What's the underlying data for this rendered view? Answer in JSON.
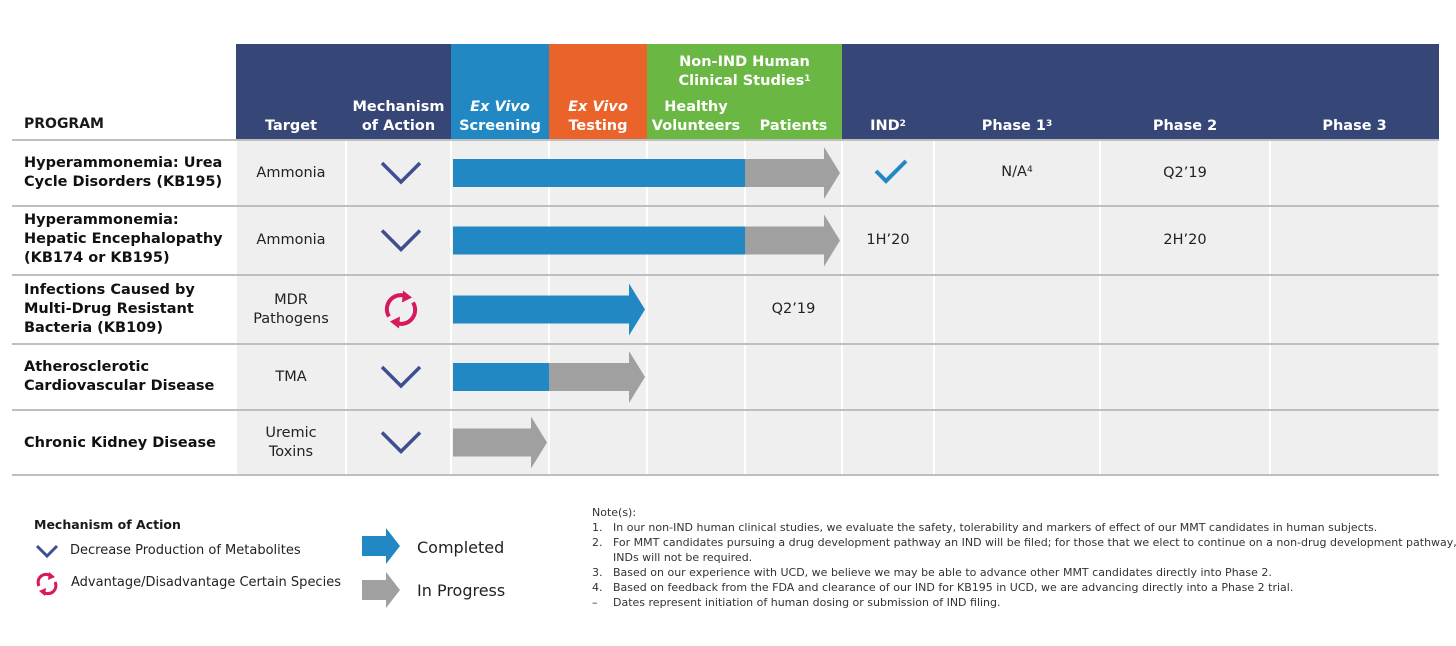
{
  "header": {
    "program": "PROGRAM",
    "target": "Target",
    "mechanism": [
      "Mechanism",
      "of Action"
    ],
    "ex_vivo_screening": [
      "Ex Vivo",
      "Screening"
    ],
    "ex_vivo_testing": [
      "Ex Vivo",
      "Testing"
    ],
    "non_ind": [
      "Non-IND Human",
      "Clinical Studies"
    ],
    "non_ind_sup": "1",
    "healthy": [
      "Healthy",
      "Volunteers"
    ],
    "patients": "Patients",
    "ind": "IND",
    "ind_sup": "2",
    "phase1": "Phase 1",
    "phase1_sup": "3",
    "phase2": "Phase 2",
    "phase3": "Phase 3"
  },
  "chart_data": {
    "type": "table",
    "stages": [
      "Ex Vivo Screening",
      "Ex Vivo Testing",
      "Healthy Volunteers",
      "Patients"
    ],
    "rows": [
      {
        "program": [
          "Hyperammonemia: Urea",
          "Cycle Disorders (KB195)"
        ],
        "target": [
          "Ammonia"
        ],
        "mechanism": "decrease",
        "completed_through": 3,
        "in_progress_through": 4,
        "ind": "check",
        "phase1": "N/A",
        "phase1_sup": "4",
        "phase2": "Q2’19"
      },
      {
        "program": [
          "Hyperammonemia:",
          "Hepatic Encephalopathy",
          "(KB174 or KB195)"
        ],
        "target": [
          "Ammonia"
        ],
        "mechanism": "decrease",
        "completed_through": 3,
        "in_progress_through": 4,
        "ind": "1H’20",
        "phase2": "2H’20"
      },
      {
        "program": [
          "Infections Caused by",
          "Multi-Drug Resistant",
          "Bacteria (KB109)"
        ],
        "target": [
          "MDR",
          "Pathogens"
        ],
        "mechanism": "advantage",
        "completed_through": 2,
        "in_progress_through": 2,
        "patients": "Q2’19"
      },
      {
        "program": [
          "Atherosclerotic",
          "Cardiovascular Disease"
        ],
        "target": [
          "TMA"
        ],
        "mechanism": "decrease",
        "completed_through": 1,
        "in_progress_through": 2
      },
      {
        "program": [
          "Chronic Kidney Disease"
        ],
        "target": [
          "Uremic",
          "Toxins"
        ],
        "mechanism": "decrease",
        "completed_through": 0,
        "in_progress_through": 1
      }
    ]
  },
  "legend": {
    "title": "Mechanism of Action",
    "decrease": "Decrease Production of Metabolites",
    "advantage": "Advantage/Disadvantage Certain Species",
    "completed": "Completed",
    "in_progress": "In Progress"
  },
  "notes": {
    "title": "Note(s):",
    "items": [
      {
        "num": "1.",
        "text": "In our non-IND human clinical studies, we evaluate the safety, tolerability and markers of effect of our MMT candidates in human subjects."
      },
      {
        "num": "2.",
        "text": "For MMT candidates pursuing a drug development pathway an IND will be filed; for those that we elect to continue on a non-drug development pathway,",
        "cont": "INDs will not be required."
      },
      {
        "num": "3.",
        "text": "Based on our experience with UCD, we believe we may be able to advance other MMT candidates directly into Phase 2."
      },
      {
        "num": "4.",
        "text": "Based on feedback from the FDA and clearance of our IND for KB195 in UCD, we are advancing directly into a Phase 2 trial."
      },
      {
        "num": "–",
        "text": "Dates represent initiation of human dosing or submission of IND filing."
      }
    ]
  },
  "colors": {
    "navy": "#364676",
    "blue": "#2288c4",
    "orange": "#e9632b",
    "green": "#6ab843",
    "gray": "#a0a0a0",
    "magenta": "#d6185f",
    "chevron": "#3d4f8f"
  }
}
